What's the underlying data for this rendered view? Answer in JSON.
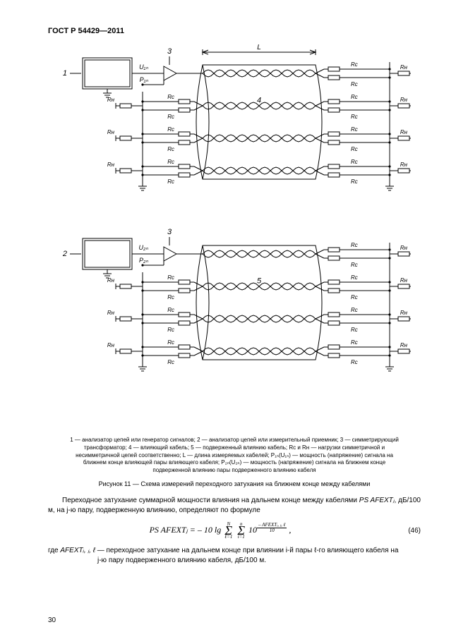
{
  "header": "ГОСТ Р 54429—2011",
  "figure": {
    "labels": {
      "analyzer1": "1",
      "analyzer2": "2",
      "balun": "3",
      "cable4": "4",
      "cable5": "5",
      "L": "L",
      "U1n": "U₁ₙ",
      "P1n": "P₁ₙ",
      "U2n": "U₂ₙ",
      "P2n": "P₂ₙ",
      "RH": "Rн",
      "RC": "Rс"
    },
    "caption": "1 — анализатор цепей или генератор сигналов; 2 — анализатор цепей или измерительный приемник; 3 — симметрирующий трансформатор; 4 — влияющий кабель; 5 — подверженный влиянию кабель; Rс и Rн — нагрузки симметричной и несимметричной цепей соответственно; L — длина измеряемых кабелей; P₁ₙ(U₁ₙ) — мощность (напряжение) сигнала на ближнем конце влияющей пары влияющего кабеля; P₂ₙ(U₂ₙ) — мощность (напряжение) сигнала на ближнем конце подверженной влиянию пары подверженного влиянию кабеля",
    "title": "Рисунок 11 — Схема измерений переходного затухания на ближнем конце между кабелями"
  },
  "text": {
    "para1_a": "Переходное затухание суммарной мощности влияния на дальнем конце между кабелями ",
    "para1_b": "PS AFEXTⱼ",
    "para1_c": ", дБ/100 м, на j-ю пару, подверженную влиянию, определяют по формуле",
    "formula_lhs": "PS AFEXTⱼ = – 10 lg",
    "formula_N": "N",
    "formula_sum_bot1": "ℓ=1",
    "formula_n": "n",
    "formula_sum_bot2": "i=1",
    "formula_ten": "10",
    "formula_exp_num": "– AFEXTᵢ, ⱼ, ℓ",
    "formula_exp_den": "10",
    "formula_num": "(46)",
    "where_a": "где ",
    "where_b": "AFEXTᵢ, ⱼ, ℓ",
    "where_c": " — переходное затухание на дальнем конце при влиянии i-й пары ℓ-го влияющего кабеля на",
    "where_d": "j-ю пару подверженного влиянию кабеля, дБ/100 м."
  },
  "pagenum": "30",
  "style": {
    "stroke": "#000000",
    "stroke_width": 1,
    "font_small": 8,
    "font_label": 9
  }
}
